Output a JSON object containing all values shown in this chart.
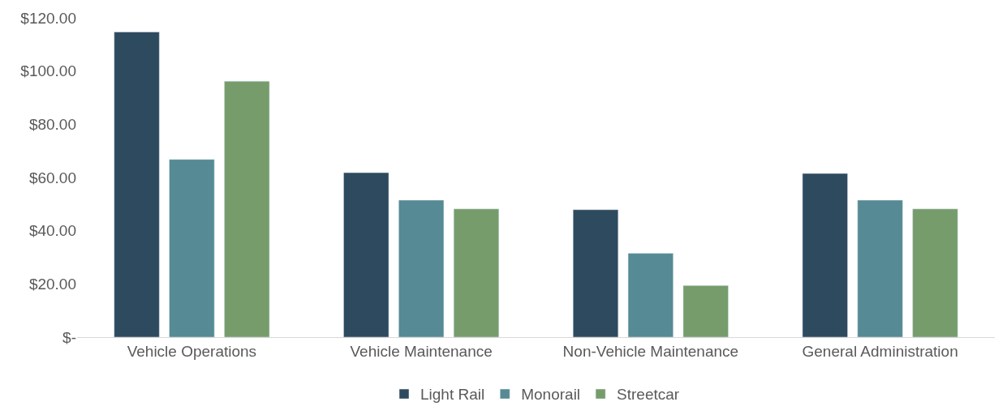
{
  "chart_data": {
    "type": "bar",
    "categories": [
      "Vehicle Operations",
      "Vehicle Maintenance",
      "Non-Vehicle Maintenance",
      "General Administration"
    ],
    "series": [
      {
        "name": "Light Rail",
        "color": "#2e4a5e",
        "values": [
          114.7,
          61.8,
          47.9,
          61.5
        ]
      },
      {
        "name": "Monorail",
        "color": "#568a94",
        "values": [
          66.8,
          51.5,
          31.5,
          51.5
        ]
      },
      {
        "name": "Streetcar",
        "color": "#769c6c",
        "values": [
          96.2,
          48.2,
          19.4,
          48.2
        ]
      }
    ],
    "ylim": [
      0,
      120
    ],
    "yticks": [
      {
        "value": 0,
        "label": "$-"
      },
      {
        "value": 20,
        "label": "$20.00"
      },
      {
        "value": 40,
        "label": "$40.00"
      },
      {
        "value": 60,
        "label": "$60.00"
      },
      {
        "value": 80,
        "label": "$80.00"
      },
      {
        "value": 100,
        "label": "$100.00"
      },
      {
        "value": 120,
        "label": "$120.00"
      }
    ],
    "grid": false,
    "legend": "bottom"
  }
}
